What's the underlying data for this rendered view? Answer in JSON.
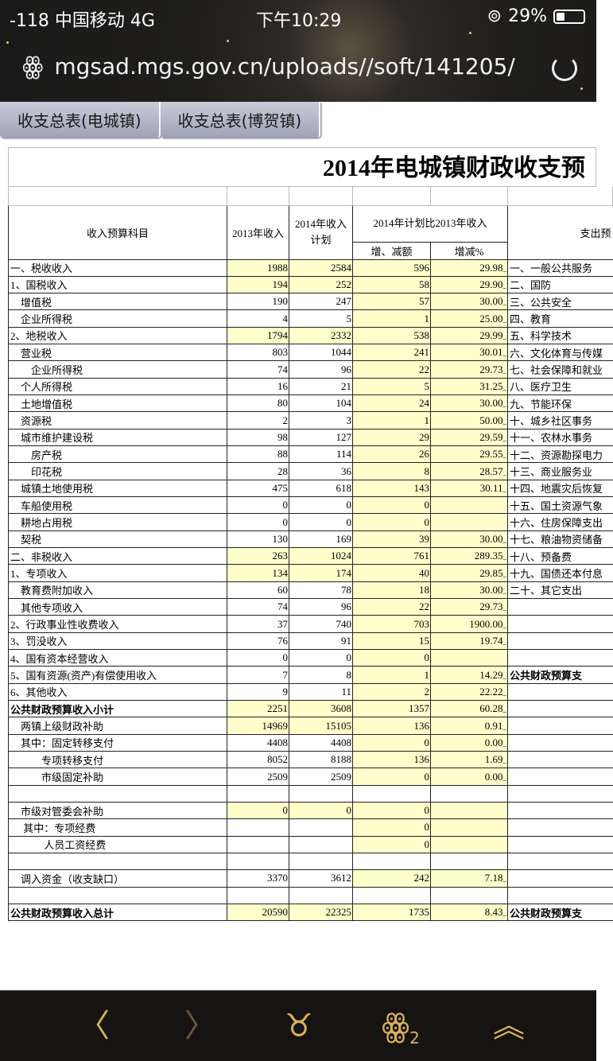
{
  "status": {
    "carrier": "-118 中国移动  4G",
    "time": "下午10:29",
    "battery": "29%",
    "battery_level": 0.29
  },
  "browser": {
    "url": "mgsad.mgs.gov.cn/uploads//soft/141205/"
  },
  "tabs": [
    "收支总表(电城镇)",
    "收支总表(博贺镇)"
  ],
  "sheet": {
    "title": "2014年电城镇财政收支预",
    "headers": {
      "item": "收入预算科目",
      "y2013": "2013年收入",
      "y2014": "2014年收入计划",
      "compare": "2014年计划比2013年收入",
      "diff": "增、减额",
      "pct": "增减%",
      "expense": "支出预"
    },
    "rows": [
      [
        "一、税收收入",
        "1988",
        "2584",
        "596",
        "29.98",
        "一、一般公共服务"
      ],
      [
        "1、国税收入",
        "194",
        "252",
        "58",
        "29.90",
        "二、国防"
      ],
      [
        "　增值税",
        "190",
        "247",
        "57",
        "30.00",
        "三、公共安全"
      ],
      [
        "　企业所得税",
        "4",
        "5",
        "1",
        "25.00",
        "四、教育"
      ],
      [
        "2、地税收入",
        "1794",
        "2332",
        "538",
        "29.99",
        "五、科学技术"
      ],
      [
        "　营业税",
        "803",
        "1044",
        "241",
        "30.01",
        "六、文化体育与传媒"
      ],
      [
        "　　企业所得税",
        "74",
        "96",
        "22",
        "29.73",
        "七、社会保障和就业"
      ],
      [
        "　个人所得税",
        "16",
        "21",
        "5",
        "31.25",
        "八、医疗卫生"
      ],
      [
        "　土地增值税",
        "80",
        "104",
        "24",
        "30.00",
        "九、节能环保"
      ],
      [
        "　资源税",
        "2",
        "3",
        "1",
        "50.00",
        "十、城乡社区事务"
      ],
      [
        "　城市维护建设税",
        "98",
        "127",
        "29",
        "29.59",
        "十一、农林水事务"
      ],
      [
        "　　房产税",
        "88",
        "114",
        "26",
        "29.55",
        "十二、资源勘探电力"
      ],
      [
        "　　印花税",
        "28",
        "36",
        "8",
        "28.57",
        "十三、商业服务业"
      ],
      [
        "　城镇土地使用税",
        "475",
        "618",
        "143",
        "30.11",
        "十四、地震灾后恢复"
      ],
      [
        "　车船使用税",
        "0",
        "0",
        "0",
        "",
        "十五、国土资源气象"
      ],
      [
        "　耕地占用税",
        "0",
        "0",
        "0",
        "",
        "十六、住房保障支出"
      ],
      [
        "　契税",
        "130",
        "169",
        "39",
        "30.00",
        "十七、粮油物资储备"
      ],
      [
        "二、非税收入",
        "263",
        "1024",
        "761",
        "289.35",
        "十八、预备费"
      ],
      [
        "1、专项收入",
        "134",
        "174",
        "40",
        "29.85",
        "十九、国债还本付息"
      ],
      [
        "　教育费附加收入",
        "60",
        "78",
        "18",
        "30.00",
        "二十、其它支出"
      ],
      [
        "　其他专项收入",
        "74",
        "96",
        "22",
        "29.73",
        ""
      ],
      [
        "2、行政事业性收费收入",
        "37",
        "740",
        "703",
        "1900.00",
        ""
      ],
      [
        "3、罚没收入",
        "76",
        "91",
        "15",
        "19.74",
        ""
      ],
      [
        "4、国有资本经营收入",
        "0",
        "0",
        "0",
        "",
        ""
      ],
      [
        "5、国有资源(资产)有偿使用收入",
        "7",
        "8",
        "1",
        "14.29",
        " 公共财政预算支"
      ],
      [
        "6、其他收入",
        "9",
        "11",
        "2",
        "22.22",
        ""
      ],
      [
        " 公共财政预算收入小计",
        "2251",
        "3608",
        "1357",
        "60.28",
        ""
      ],
      [
        "　两镇上级财政补助",
        "14969",
        "15105",
        "136",
        "0.91",
        ""
      ],
      [
        "　其中：固定转移支付",
        "4408",
        "4408",
        "0",
        "0.00",
        ""
      ],
      [
        "　　　专项转移支付",
        "8052",
        "8188",
        "136",
        "1.69",
        ""
      ],
      [
        "　　　市级固定补助",
        "2509",
        "2509",
        "0",
        "0.00",
        ""
      ],
      [
        "",
        "",
        "",
        "",
        "",
        ""
      ],
      [
        "　市级对管委会补助",
        "0",
        "0",
        "0",
        "",
        ""
      ],
      [
        "　 其中：专项经费",
        "",
        "",
        "0",
        "",
        ""
      ],
      [
        "　　　 人员工资经费",
        "",
        "",
        "0",
        "",
        ""
      ],
      [
        "",
        "",
        "",
        "",
        "",
        ""
      ],
      [
        "　调入资金（收支缺口）",
        "3370",
        "3612",
        "242",
        "7.18",
        ""
      ],
      [
        "",
        "",
        "",
        "",
        "",
        ""
      ],
      [
        " 公共财政预算收入总计",
        "20590",
        "22325",
        "1735",
        "8.43",
        " 公共财政预算支"
      ]
    ],
    "highlight_rows": [
      0,
      1,
      4,
      17,
      18,
      26,
      27,
      32,
      38
    ],
    "bold_rows": [
      26,
      38
    ],
    "highlight_color": "#ffffcc"
  },
  "bottom_nav": [
    "back-icon",
    "forward-icon",
    "taurus-menu-icon",
    "ghost-tabs-icon",
    "share-icon"
  ],
  "tab_count": "2"
}
